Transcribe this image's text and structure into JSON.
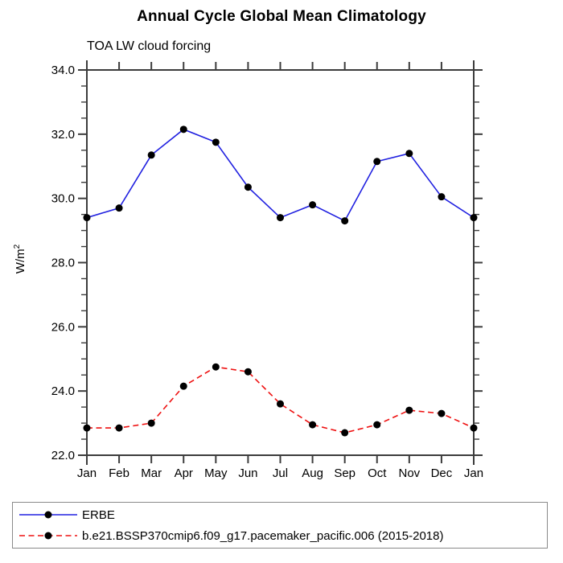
{
  "page": {
    "title": "Annual Cycle Global Mean Climatology",
    "subtitle": "TOA LW cloud forcing"
  },
  "legend": {
    "position": "bottom",
    "entries": [
      {
        "label": "ERBE",
        "color": "#2121e0",
        "line_style": "solid",
        "marker": "filled-circle",
        "marker_color": "#000000"
      },
      {
        "label": "b.e21.BSSP370cmip6.f09_g17.pacemaker_pacific.006 (2015-2018)",
        "color": "#ee1111",
        "line_style": "dashed",
        "marker": "filled-circle",
        "marker_color": "#000000"
      }
    ]
  },
  "chart_data": {
    "type": "line",
    "title": "Annual Cycle Global Mean Climatology",
    "subtitle": "TOA LW cloud forcing",
    "xlabel": "",
    "ylabel": "W/m²",
    "ylabel_base": "W/m",
    "ylabel_exponent": "2",
    "categories": [
      "Jan",
      "Feb",
      "Mar",
      "Apr",
      "May",
      "Jun",
      "Jul",
      "Aug",
      "Sep",
      "Oct",
      "Nov",
      "Dec",
      "Jan"
    ],
    "series": [
      {
        "name": "ERBE",
        "color": "#2121e0",
        "line_style": "solid",
        "marker": "filled-circle",
        "marker_color": "#000000",
        "values": [
          29.4,
          29.7,
          31.35,
          32.15,
          31.75,
          30.35,
          29.4,
          29.8,
          29.3,
          31.15,
          31.4,
          30.05,
          29.4
        ]
      },
      {
        "name": "b.e21.BSSP370cmip6.f09_g17.pacemaker_pacific.006 (2015-2018)",
        "color": "#ee1111",
        "line_style": "dashed",
        "marker": "filled-circle",
        "marker_color": "#000000",
        "values": [
          22.85,
          22.85,
          23.0,
          24.15,
          24.75,
          24.6,
          23.6,
          22.95,
          22.7,
          22.95,
          23.4,
          23.3,
          22.85
        ]
      }
    ],
    "ylim": [
      22.0,
      34.0
    ],
    "ytick_major_step": 2.0,
    "ytick_minor_step": 0.5,
    "ytick_labels": [
      "22.0",
      "24.0",
      "26.0",
      "28.0",
      "30.0",
      "32.0",
      "34.0"
    ],
    "grid": false,
    "legend_position": "bottom",
    "axis_color": "#3c3c3c"
  }
}
